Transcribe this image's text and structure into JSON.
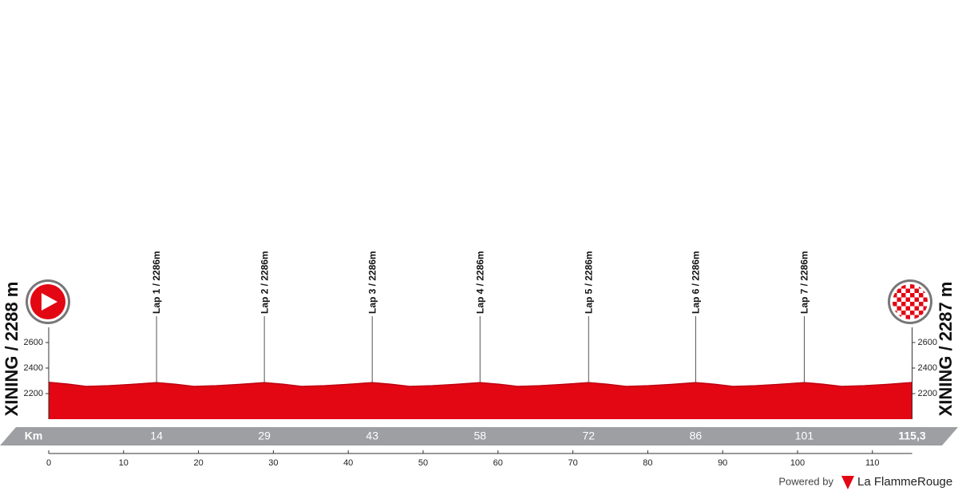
{
  "chart_data": {
    "type": "profile",
    "start_label": "XINING / 2288 m",
    "finish_label": "XINING / 2287 m",
    "x": [
      0,
      2.5,
      5,
      8,
      11,
      14.4,
      16.9,
      19.4,
      22.4,
      25.4,
      28.8,
      31.3,
      33.8,
      36.8,
      39.8,
      43.2,
      45.7,
      48.2,
      51.2,
      54.2,
      57.6,
      60.1,
      62.6,
      65.6,
      68.6,
      72.1,
      74.6,
      77.1,
      80.1,
      83.1,
      86.4,
      88.9,
      91.4,
      94.4,
      97.4,
      100.9,
      103.4,
      105.9,
      108.9,
      111.9,
      115.3
    ],
    "values": [
      2288,
      2275,
      2256,
      2262,
      2272,
      2286,
      2274,
      2256,
      2262,
      2272,
      2286,
      2274,
      2256,
      2262,
      2272,
      2286,
      2274,
      2256,
      2262,
      2272,
      2286,
      2274,
      2256,
      2262,
      2272,
      2286,
      2274,
      2256,
      2262,
      2272,
      2286,
      2274,
      2256,
      2262,
      2272,
      2286,
      2274,
      2256,
      2262,
      2272,
      2287
    ],
    "color": "#e30613",
    "xlim": [
      0,
      115.3
    ],
    "xticks": [
      0,
      10,
      20,
      30,
      40,
      50,
      60,
      70,
      80,
      90,
      100,
      110
    ],
    "ylim": [
      2000,
      2600
    ],
    "yticks": [
      2200,
      2400,
      2600
    ],
    "km_axis_label": "Km",
    "markers": [
      {
        "label": "Lap 1 / 2286m",
        "km": {
          "value": 14.4,
          "label": "14"
        }
      },
      {
        "label": "Lap 2 / 2286m",
        "km": {
          "value": 28.8,
          "label": "29"
        }
      },
      {
        "label": "Lap 3 / 2286m",
        "km": {
          "value": 43.2,
          "label": "43"
        }
      },
      {
        "label": "Lap 4 / 2286m",
        "km": {
          "value": 57.6,
          "label": "58"
        }
      },
      {
        "label": "Lap 5 / 2286m",
        "km": {
          "value": 72.1,
          "label": "72"
        }
      },
      {
        "label": "Lap 6 / 2286m",
        "km": {
          "value": 86.4,
          "label": "86"
        }
      },
      {
        "label": "Lap 7 / 2286m",
        "km": {
          "value": 100.9,
          "label": "101"
        }
      }
    ],
    "finish_km": {
      "value": 115.3,
      "label": "115,3"
    },
    "footer": {
      "powered_by": "Powered by",
      "brand": "La FlammeRouge"
    }
  }
}
